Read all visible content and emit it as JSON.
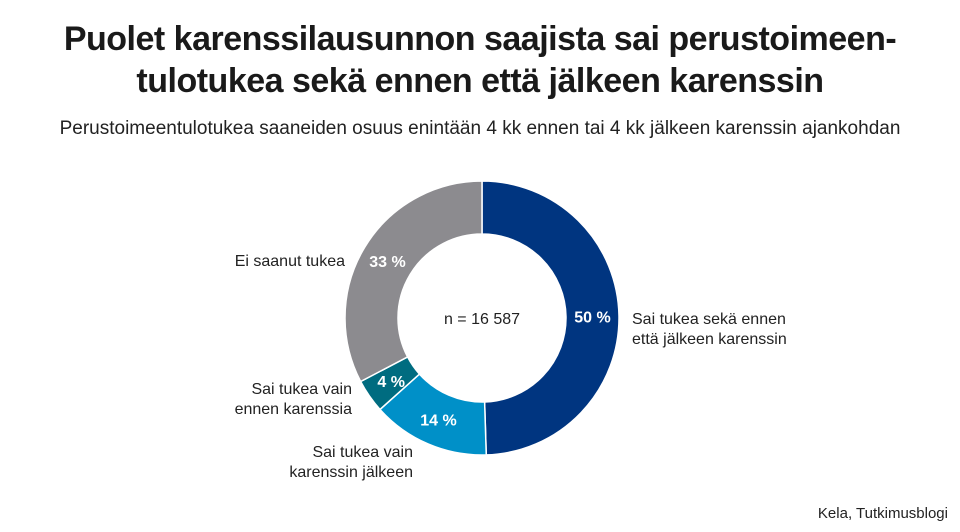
{
  "title_line1": "Puolet karenssilausunnon saajista sai perustoimeen-",
  "title_line2": "tulotukea sekä ennen että jälkeen karenssin",
  "subtitle": "Perustoimeentulotukea saaneiden osuus enintään 4 kk ennen tai 4 kk jälkeen karenssin ajankohdan",
  "source": "Kela, Tutkimusblogi",
  "chart_data": {
    "type": "pie",
    "variant": "donut",
    "center_label": "n = 16 587",
    "slices": [
      {
        "label": [
          "Sai tukea sekä ennen",
          "että jälkeen karenssin"
        ],
        "value": 50,
        "value_label": "50 %",
        "color": "#003580"
      },
      {
        "label": [
          "Sai tukea vain",
          "karenssin jälkeen"
        ],
        "value": 14,
        "value_label": "14 %",
        "color": "#0090c8"
      },
      {
        "label": [
          "Sai tukea vain",
          "ennen karenssia"
        ],
        "value": 4,
        "value_label": "4 %",
        "color": "#006c80"
      },
      {
        "label": [
          "Ei saanut tukea"
        ],
        "value": 33,
        "value_label": "33 %",
        "color": "#8c8b8f"
      }
    ]
  }
}
